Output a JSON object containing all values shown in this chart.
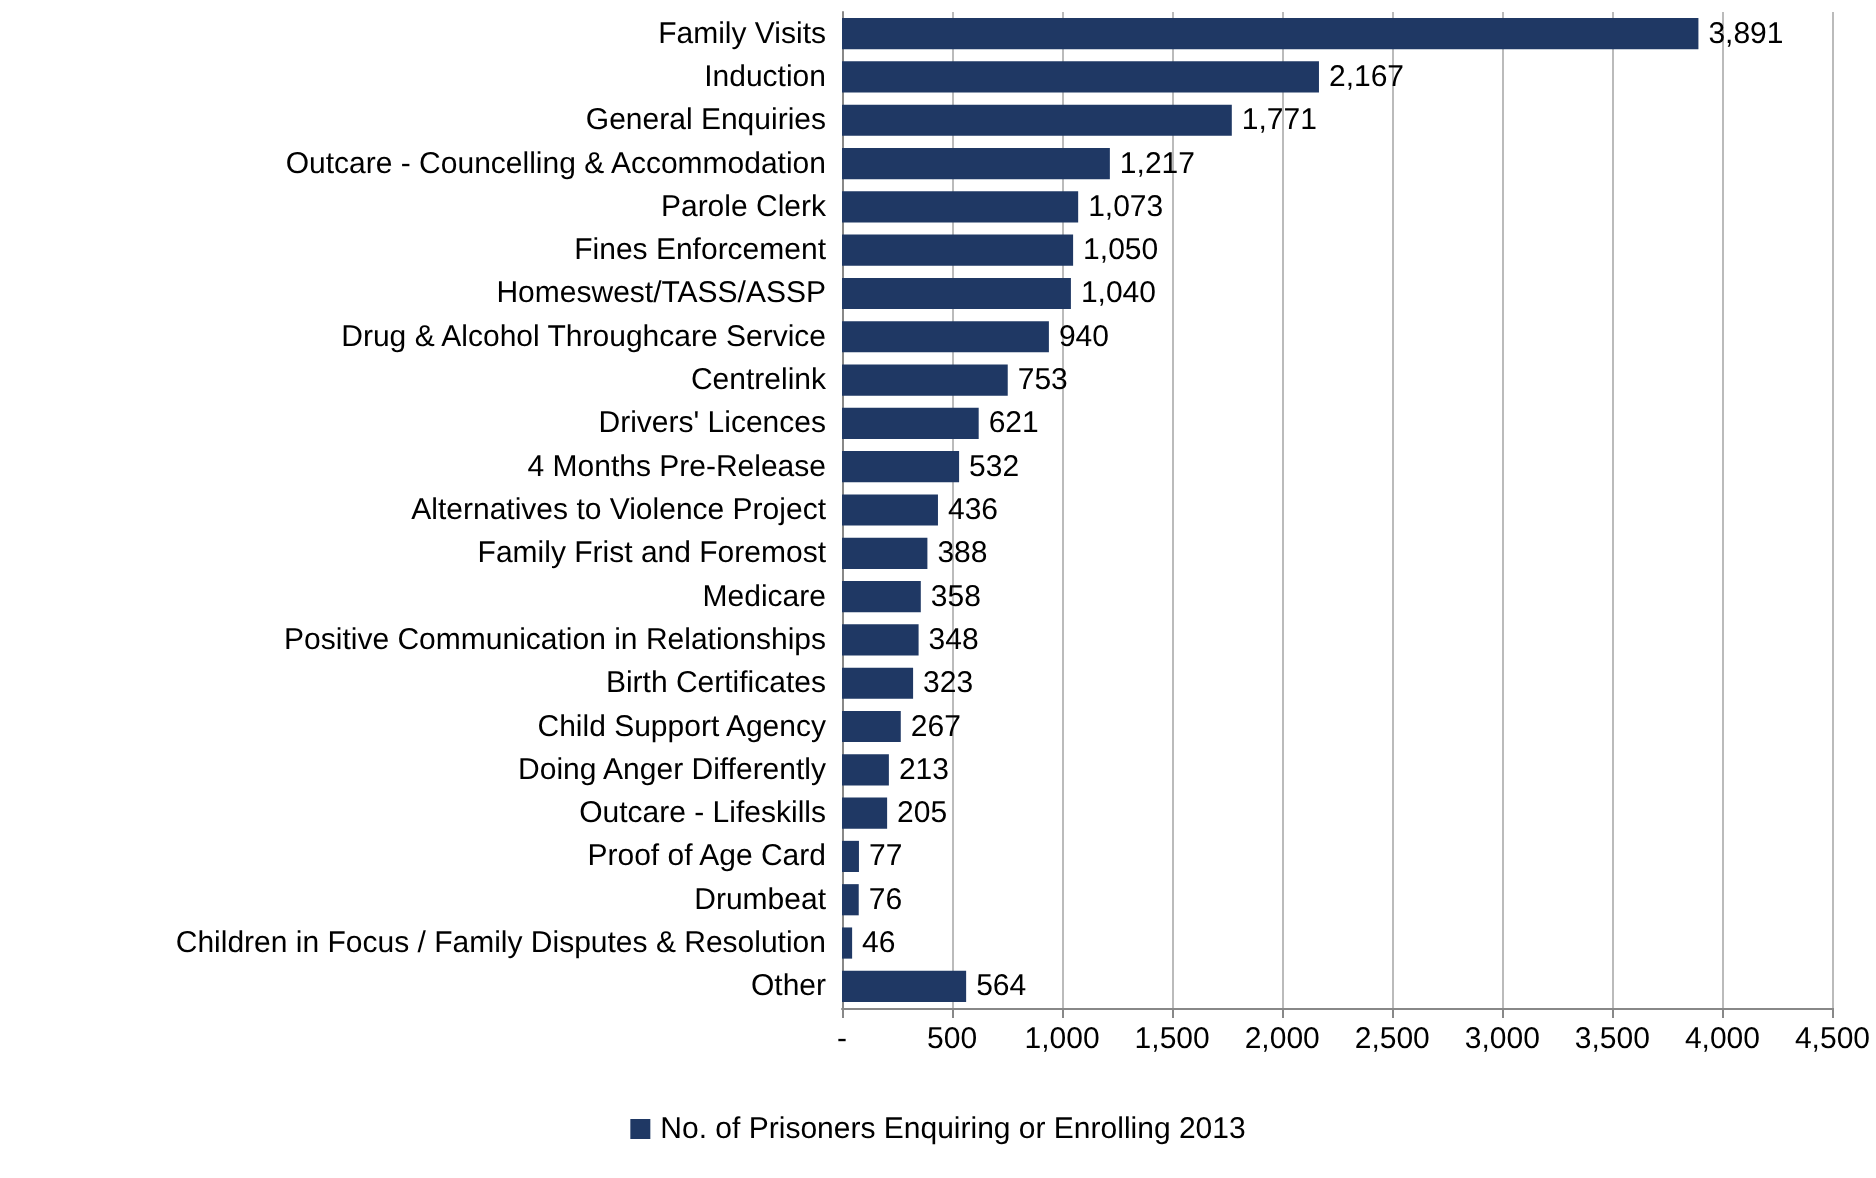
{
  "chart_data": {
    "type": "bar",
    "orientation": "horizontal",
    "categories": [
      "Family Visits",
      "Induction",
      "General Enquiries",
      "Outcare - Councelling & Accommodation",
      "Parole Clerk",
      "Fines Enforcement",
      "Homeswest/TASS/ASSP",
      "Drug & Alcohol Throughcare Service",
      "Centrelink",
      "Drivers' Licences",
      "4 Months Pre-Release",
      "Alternatives to Violence Project",
      "Family Frist and Foremost",
      "Medicare",
      "Positive Communication in Relationships",
      "Birth Certificates",
      "Child Support Agency",
      "Doing Anger Differently",
      "Outcare - Lifeskills",
      "Proof of Age Card",
      "Drumbeat",
      "Children in Focus / Family Disputes & Resolution",
      "Other"
    ],
    "series": [
      {
        "name": "No. of Prisoners Enquiring or Enrolling 2013",
        "color": "#1f3864",
        "values": [
          3891,
          2167,
          1771,
          1217,
          1073,
          1050,
          1040,
          940,
          753,
          621,
          532,
          436,
          388,
          358,
          348,
          323,
          267,
          213,
          205,
          77,
          76,
          46,
          564
        ],
        "value_labels": [
          "3,891",
          "2,167",
          "1,771",
          "1,217",
          "1,073",
          "1,050",
          "1,040",
          "940",
          "753",
          "621",
          "532",
          "436",
          "388",
          "358",
          "348",
          "323",
          "267",
          "213",
          "205",
          "77",
          "76",
          "46",
          "564"
        ]
      }
    ],
    "xlim": [
      0,
      4500
    ],
    "xticks": [
      {
        "value": 0,
        "label": "-"
      },
      500,
      {
        "value": 1000,
        "label": "1,000"
      },
      {
        "value": 1500,
        "label": "1,500"
      },
      {
        "value": 2000,
        "label": "2,000"
      },
      {
        "value": 2500,
        "label": "2,500"
      },
      {
        "value": 3000,
        "label": "3,000"
      },
      {
        "value": 3500,
        "label": "3,500"
      },
      {
        "value": 4000,
        "label": "4,000"
      },
      {
        "value": 4500,
        "label": "4,500"
      }
    ],
    "grid": "x",
    "legend": "bottom"
  }
}
